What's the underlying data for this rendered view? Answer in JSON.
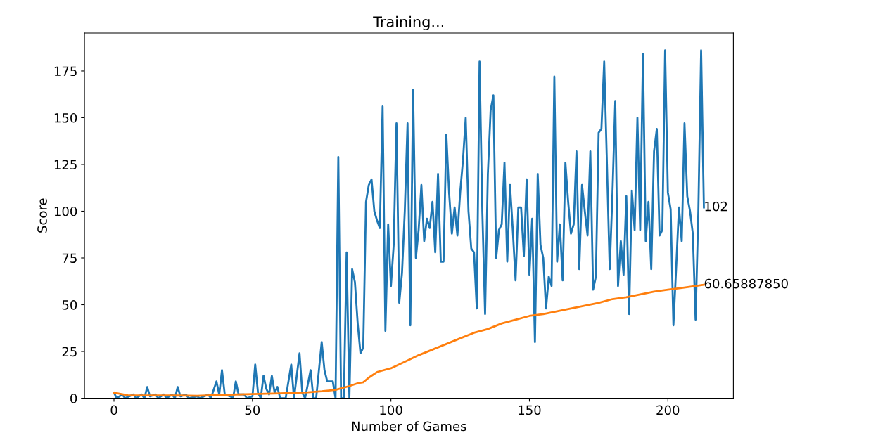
{
  "chart_data": {
    "type": "line",
    "title": "Training...",
    "xlabel": "Number of Games",
    "ylabel": "Score",
    "xlim": [
      -10.65,
      223.65
    ],
    "ylim": [
      0,
      195.3
    ],
    "xticks": [
      0,
      50,
      100,
      150,
      200
    ],
    "yticks": [
      0,
      25,
      50,
      75,
      100,
      125,
      150,
      175
    ],
    "series": [
      {
        "color": "#1f77b4",
        "x": [
          0,
          1,
          3,
          4,
          7,
          8,
          10,
          11,
          12,
          13,
          15,
          16,
          18,
          19,
          21,
          22,
          23,
          24,
          26,
          27,
          30,
          31,
          34,
          35,
          37,
          38,
          39,
          40,
          42,
          43,
          44,
          45,
          47,
          48,
          50,
          51,
          52,
          53,
          54,
          55,
          56,
          57,
          58,
          59,
          60,
          62,
          64,
          65,
          67,
          68,
          69,
          71,
          72,
          73,
          75,
          76,
          77,
          78,
          79,
          80,
          81,
          82,
          83,
          84,
          85,
          86,
          87,
          88,
          89,
          90,
          91,
          92,
          93,
          94,
          95,
          96,
          97,
          98,
          99,
          100,
          101,
          102,
          103,
          104,
          105,
          106,
          107,
          108,
          109,
          110,
          111,
          112,
          113,
          114,
          115,
          116,
          117,
          118,
          119,
          120,
          121,
          122,
          123,
          124,
          125,
          126,
          127,
          128,
          129,
          130,
          131,
          132,
          133,
          134,
          135,
          136,
          137,
          138,
          139,
          140,
          141,
          142,
          143,
          144,
          145,
          146,
          147,
          148,
          149,
          150,
          151,
          152,
          153,
          154,
          155,
          156,
          157,
          158,
          159,
          160,
          161,
          162,
          163,
          164,
          165,
          166,
          167,
          168,
          169,
          170,
          171,
          172,
          173,
          174,
          175,
          176,
          177,
          178,
          179,
          180,
          181,
          182,
          183,
          184,
          185,
          186,
          187,
          188,
          189,
          190,
          191,
          192,
          193,
          194,
          195,
          196,
          197,
          198,
          199,
          200,
          201,
          202,
          203,
          204,
          205,
          206,
          207,
          208,
          209,
          210,
          211,
          212,
          213
        ],
        "values": [
          3,
          0,
          2,
          0,
          2,
          0,
          2,
          0,
          6,
          1,
          2,
          0,
          2,
          0,
          2,
          0,
          6,
          1,
          2,
          0,
          1,
          0,
          2,
          0,
          9,
          2,
          15,
          2,
          1,
          0,
          9,
          2,
          2,
          0,
          1,
          18,
          3,
          0,
          12,
          5,
          2,
          12,
          3,
          6,
          0,
          0,
          18,
          0,
          24,
          3,
          0,
          15,
          0,
          0,
          30,
          15,
          9,
          9,
          9,
          0,
          129,
          0,
          0,
          78,
          0,
          69,
          62,
          40,
          24,
          27,
          105,
          114,
          117,
          100,
          95,
          91,
          156,
          36,
          93,
          60,
          82,
          147,
          51,
          67,
          100,
          147,
          39,
          165,
          75,
          90,
          114,
          84,
          96,
          91,
          105,
          78,
          120,
          73,
          73,
          141,
          110,
          88,
          102,
          87,
          110,
          127,
          150,
          100,
          80,
          78,
          48,
          180,
          100,
          45,
          120,
          154,
          162,
          75,
          90,
          93,
          126,
          73,
          114,
          90,
          63,
          102,
          102,
          76,
          117,
          66,
          96,
          30,
          120,
          82,
          75,
          48,
          65,
          60,
          172,
          73,
          93,
          63,
          126,
          105,
          88,
          93,
          132,
          69,
          114,
          100,
          87,
          132,
          58,
          65,
          142,
          144,
          180,
          125,
          69,
          110,
          159,
          60,
          84,
          66,
          108,
          45,
          111,
          90,
          150,
          90,
          184,
          84,
          105,
          69,
          132,
          144,
          87,
          90,
          186,
          110,
          101,
          39,
          70,
          102,
          84,
          147,
          108,
          100,
          88,
          42,
          100,
          186,
          102
        ]
      },
      {
        "color": "#ff7f0e",
        "x": [
          0,
          5,
          10,
          20,
          30,
          40,
          50,
          60,
          70,
          75,
          80,
          85,
          88,
          90,
          92,
          95,
          100,
          105,
          110,
          115,
          120,
          125,
          130,
          135,
          140,
          145,
          150,
          155,
          160,
          165,
          170,
          175,
          180,
          185,
          190,
          195,
          200,
          205,
          210,
          213
        ],
        "values": [
          3,
          1.6,
          1.5,
          1.5,
          1.3,
          1.8,
          2.2,
          2.6,
          3.2,
          3.7,
          4.5,
          6.5,
          8,
          8.5,
          11,
          14,
          16,
          19.5,
          23,
          26,
          29,
          32,
          35,
          37,
          40,
          42,
          44,
          45,
          46.5,
          48,
          49.5,
          51,
          53,
          54,
          55.5,
          57,
          58,
          59,
          60,
          60.6588785
        ]
      }
    ],
    "annotations": [
      {
        "text": "102",
        "x": 213,
        "y": 102
      },
      {
        "text": "60.65887850",
        "x": 213,
        "y": 60.6588785
      }
    ]
  }
}
